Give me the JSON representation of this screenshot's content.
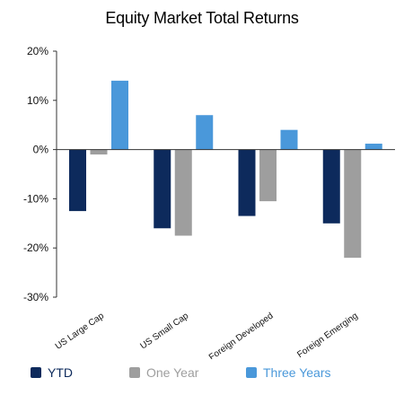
{
  "chart_data": {
    "type": "bar",
    "title": "Equity Market Total Returns",
    "categories": [
      "US Large Cap",
      "US Small Cap",
      "Foreign Developed",
      "Foreign Emerging"
    ],
    "series": [
      {
        "name": "YTD",
        "values": [
          -12.5,
          -16.0,
          -13.5,
          -15.0
        ],
        "color": "#0d2a5c"
      },
      {
        "name": "One Year",
        "values": [
          -1.0,
          -17.5,
          -10.5,
          -22.0
        ],
        "color": "#9e9e9e"
      },
      {
        "name": "Three Years",
        "values": [
          14.0,
          7.0,
          4.0,
          1.2
        ],
        "color": "#4a98da"
      }
    ],
    "ylim": [
      -30,
      20
    ],
    "yticks": [
      -30,
      -20,
      -10,
      0,
      10,
      20
    ],
    "ytick_labels": [
      "-30%",
      "-20%",
      "-10%",
      "0%",
      "10%",
      "20%"
    ],
    "grid": false,
    "legend_position": "bottom",
    "xlabel": "",
    "ylabel": ""
  }
}
